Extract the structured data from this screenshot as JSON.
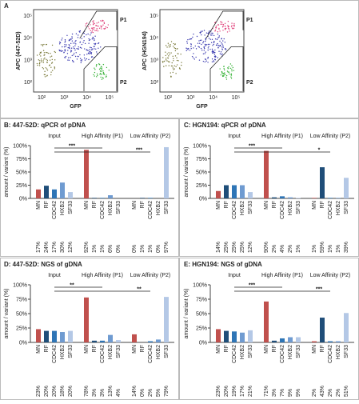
{
  "flow": {
    "label": "A",
    "ticks": [
      "10²",
      "10³",
      "10⁴",
      "10⁵"
    ],
    "plots": [
      {
        "y_label": "APC (447-52D)",
        "x_label": "GFP",
        "gate_labels": [
          "P1",
          "P2"
        ]
      },
      {
        "y_label": "APC (HGN194)",
        "x_label": "GFP",
        "gate_labels": [
          "P1",
          "P2"
        ]
      }
    ]
  },
  "chart_data": [
    {
      "type": "bar",
      "title": "B: 447-52D: qPCR of pDNA",
      "y_label": "amount / variant (%)",
      "categories": [
        "MN",
        "RF",
        "CDC42",
        "HXB2",
        "SF33"
      ],
      "colors": [
        "#c0504d",
        "#1f4e79",
        "#2e75b6",
        "#6f9bd1",
        "#b4c8e6"
      ],
      "ylim": [
        0,
        100
      ],
      "yticks": [
        {
          "value": 0,
          "label": "0%"
        },
        {
          "value": 25,
          "label": "25%"
        },
        {
          "value": 50,
          "label": "50%"
        },
        {
          "value": 75,
          "label": "75%"
        },
        {
          "value": 100,
          "label": "100%"
        }
      ],
      "significance": [
        "***",
        "***"
      ],
      "groups": [
        {
          "name": "Input",
          "values": [
            17,
            24,
            17,
            30,
            12
          ],
          "value_labels": [
            "17%",
            "24%",
            "17%",
            "30%",
            "12%"
          ]
        },
        {
          "name": "High Affinity (P1)",
          "values": [
            92,
            1,
            1,
            6,
            0
          ],
          "value_labels": [
            "92%",
            "1%",
            "1%",
            "6%",
            "0%"
          ]
        },
        {
          "name": "Low Affinity (P2)",
          "values": [
            0,
            1,
            1,
            0,
            97
          ],
          "value_labels": [
            "0%",
            "1%",
            "1%",
            "0%",
            "97%"
          ]
        }
      ]
    },
    {
      "type": "bar",
      "title": "C: HGN194: qPCR of pDNA",
      "y_label": "amount / variant (%)",
      "categories": [
        "MN",
        "RF",
        "CDC42",
        "HXB2",
        "SF33"
      ],
      "colors": [
        "#c0504d",
        "#1f4e79",
        "#2e75b6",
        "#6f9bd1",
        "#b4c8e6"
      ],
      "ylim": [
        0,
        100
      ],
      "yticks": [
        {
          "value": 0,
          "label": "0%"
        },
        {
          "value": 25,
          "label": "25%"
        },
        {
          "value": 50,
          "label": "50%"
        },
        {
          "value": 75,
          "label": "75%"
        },
        {
          "value": 100,
          "label": "100%"
        }
      ],
      "significance": [
        "***",
        "*"
      ],
      "groups": [
        {
          "name": "Input",
          "values": [
            14,
            25,
            25,
            25,
            12
          ],
          "value_labels": [
            "14%",
            "25%",
            "25%",
            "25%",
            "12%"
          ]
        },
        {
          "name": "High Affinity (P1)",
          "values": [
            90,
            2,
            4,
            2,
            1
          ],
          "value_labels": [
            "90%",
            "2%",
            "4%",
            "2%",
            "1%"
          ]
        },
        {
          "name": "Low Affinity (P2)",
          "values": [
            1,
            59,
            1,
            1,
            39
          ],
          "value_labels": [
            "1%",
            "59%",
            "1%",
            "1%",
            "39%"
          ]
        }
      ]
    },
    {
      "type": "bar",
      "title": "D: 447-52D: NGS of gDNA",
      "y_label": "amount / variant (%)",
      "categories": [
        "MN",
        "RF",
        "CDC42",
        "HXB2",
        "SF33"
      ],
      "colors": [
        "#c0504d",
        "#1f4e79",
        "#2e75b6",
        "#6f9bd1",
        "#b4c8e6"
      ],
      "ylim": [
        0,
        100
      ],
      "yticks": [
        {
          "value": 0,
          "label": "0%"
        },
        {
          "value": 25,
          "label": "25%"
        },
        {
          "value": 50,
          "label": "50%"
        },
        {
          "value": 75,
          "label": "75%"
        },
        {
          "value": 100,
          "label": "100%"
        }
      ],
      "significance": [
        "**",
        "**"
      ],
      "groups": [
        {
          "name": "Input",
          "values": [
            23,
            20,
            20,
            18,
            20
          ],
          "value_labels": [
            "23%",
            "20%",
            "20%",
            "18%",
            "20%"
          ]
        },
        {
          "name": "High Affinity (P1)",
          "values": [
            78,
            3,
            3,
            13,
            4
          ],
          "value_labels": [
            "78%",
            "3%",
            "3%",
            "13%",
            "4%"
          ]
        },
        {
          "name": "Low Affinity (P2)",
          "values": [
            14,
            0,
            2,
            5,
            79
          ],
          "value_labels": [
            "14%",
            "0%",
            "2%",
            "5%",
            "79%"
          ]
        }
      ]
    },
    {
      "type": "bar",
      "title": "E: HGN194: NGS of gDNA",
      "y_label": "amount / variant (%)",
      "categories": [
        "MN",
        "RF",
        "CDC42",
        "HXB2",
        "SF33"
      ],
      "colors": [
        "#c0504d",
        "#1f4e79",
        "#2e75b6",
        "#6f9bd1",
        "#b4c8e6"
      ],
      "ylim": [
        0,
        100
      ],
      "yticks": [
        {
          "value": 0,
          "label": "0%"
        },
        {
          "value": 25,
          "label": "25%"
        },
        {
          "value": 50,
          "label": "50%"
        },
        {
          "value": 75,
          "label": "75%"
        },
        {
          "value": 100,
          "label": "100%"
        }
      ],
      "significance": [
        "***",
        "***"
      ],
      "groups": [
        {
          "name": "Input",
          "values": [
            23,
            20,
            19,
            17,
            21
          ],
          "value_labels": [
            "23%",
            "20%",
            "19%",
            "17%",
            "21%"
          ]
        },
        {
          "name": "High Affinity (P1)",
          "values": [
            71,
            3,
            7,
            9,
            9
          ],
          "value_labels": [
            "71%",
            "3%",
            "7%",
            "9%",
            "9%"
          ]
        },
        {
          "name": "Low Affinity (P2)",
          "values": [
            2,
            43,
            2,
            2,
            51
          ],
          "value_labels": [
            "2%",
            "43%",
            "2%",
            "2%",
            "51%"
          ]
        }
      ]
    }
  ]
}
